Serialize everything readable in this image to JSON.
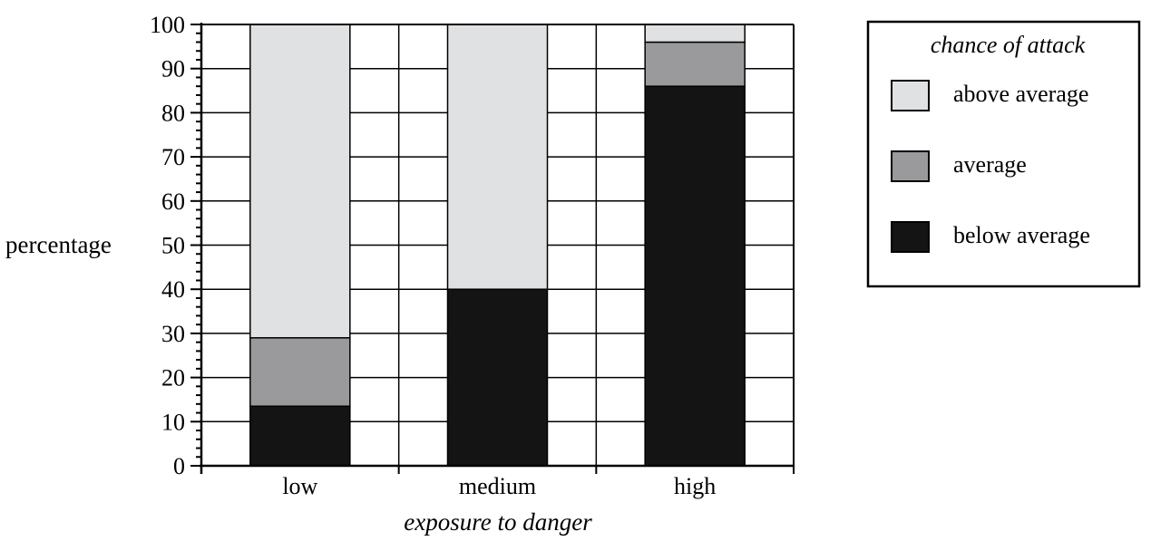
{
  "chart_data": {
    "type": "bar",
    "stacked": true,
    "title": "",
    "xlabel": "exposure to danger",
    "ylabel": "percentage",
    "categories": [
      "low",
      "medium",
      "high"
    ],
    "ylim": [
      0,
      100
    ],
    "y_ticks": [
      0,
      10,
      20,
      30,
      40,
      50,
      60,
      70,
      80,
      90,
      100
    ],
    "grid": true,
    "legend": {
      "title": "chance of attack",
      "position": "right"
    },
    "series": [
      {
        "name": "below average",
        "color": "#141414",
        "values": [
          13.5,
          40,
          86
        ]
      },
      {
        "name": "average",
        "color": "#9a9a9c",
        "values": [
          15.5,
          0,
          10
        ]
      },
      {
        "name": "above average",
        "color": "#e0e1e3",
        "values": [
          71,
          60,
          4
        ]
      }
    ]
  }
}
